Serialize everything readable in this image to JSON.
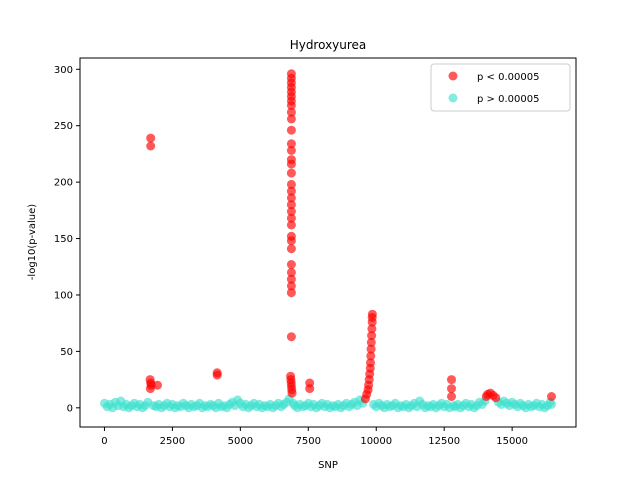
{
  "chart_data": {
    "type": "scatter",
    "title": "Hydroxyurea",
    "xlabel": "SNP",
    "ylabel": "-log10(p-value)",
    "xlim": [
      -900,
      17350
    ],
    "ylim": [
      -17,
      310
    ],
    "xticks": [
      0,
      2500,
      5000,
      7500,
      10000,
      12500,
      15000
    ],
    "yticks": [
      0,
      50,
      100,
      150,
      200,
      250,
      300
    ],
    "xtick_labels": [
      "0",
      "2500",
      "5000",
      "7500",
      "10000",
      "12500",
      "15000"
    ],
    "ytick_labels": [
      "0",
      "50",
      "100",
      "150",
      "200",
      "250",
      "300"
    ],
    "legend_position": "top-right",
    "series": [
      {
        "name": "p < 0.00005",
        "color": "#ff0000",
        "points": [
          [
            1700,
            239
          ],
          [
            1700,
            232
          ],
          [
            1680,
            25
          ],
          [
            1700,
            22
          ],
          [
            1720,
            20
          ],
          [
            1690,
            17
          ],
          [
            1950,
            20
          ],
          [
            4150,
            31
          ],
          [
            4150,
            29
          ],
          [
            7550,
            22
          ],
          [
            7550,
            17
          ],
          [
            6880,
            296
          ],
          [
            6880,
            292
          ],
          [
            6880,
            288
          ],
          [
            6880,
            284
          ],
          [
            6880,
            280
          ],
          [
            6880,
            276
          ],
          [
            6880,
            272
          ],
          [
            6880,
            268
          ],
          [
            6880,
            262
          ],
          [
            6880,
            256
          ],
          [
            6880,
            246
          ],
          [
            6880,
            234
          ],
          [
            6880,
            228
          ],
          [
            6880,
            220
          ],
          [
            6880,
            216
          ],
          [
            6880,
            208
          ],
          [
            6880,
            198
          ],
          [
            6880,
            192
          ],
          [
            6880,
            186
          ],
          [
            6880,
            180
          ],
          [
            6880,
            174
          ],
          [
            6880,
            168
          ],
          [
            6880,
            162
          ],
          [
            6880,
            152
          ],
          [
            6880,
            148
          ],
          [
            6880,
            141
          ],
          [
            6880,
            127
          ],
          [
            6880,
            120
          ],
          [
            6880,
            114
          ],
          [
            6880,
            108
          ],
          [
            6880,
            102
          ],
          [
            6880,
            63
          ],
          [
            6850,
            28
          ],
          [
            6860,
            25
          ],
          [
            6870,
            22
          ],
          [
            6880,
            19
          ],
          [
            6890,
            16
          ],
          [
            6900,
            13
          ],
          [
            9600,
            8
          ],
          [
            9650,
            12
          ],
          [
            9700,
            16
          ],
          [
            9720,
            20
          ],
          [
            9740,
            25
          ],
          [
            9760,
            30
          ],
          [
            9780,
            35
          ],
          [
            9790,
            40
          ],
          [
            9800,
            46
          ],
          [
            9810,
            52
          ],
          [
            9820,
            58
          ],
          [
            9830,
            64
          ],
          [
            9840,
            70
          ],
          [
            9850,
            76
          ],
          [
            9850,
            80
          ],
          [
            9860,
            83
          ],
          [
            12770,
            25
          ],
          [
            12770,
            17
          ],
          [
            12770,
            10
          ],
          [
            14050,
            10
          ],
          [
            14100,
            12
          ],
          [
            14200,
            13
          ],
          [
            14300,
            11
          ],
          [
            14400,
            9
          ],
          [
            16450,
            10
          ]
        ]
      },
      {
        "name": "p > 0.00005",
        "color": "#40e0d0",
        "points": [
          [
            0,
            4
          ],
          [
            100,
            1
          ],
          [
            200,
            3
          ],
          [
            300,
            0
          ],
          [
            400,
            5
          ],
          [
            500,
            2
          ],
          [
            600,
            6
          ],
          [
            700,
            1
          ],
          [
            800,
            3
          ],
          [
            900,
            0
          ],
          [
            1000,
            2
          ],
          [
            1100,
            4
          ],
          [
            1200,
            1
          ],
          [
            1300,
            3
          ],
          [
            1400,
            0
          ],
          [
            1500,
            2
          ],
          [
            1600,
            5
          ],
          [
            1800,
            2
          ],
          [
            1900,
            1
          ],
          [
            2000,
            3
          ],
          [
            2100,
            0
          ],
          [
            2200,
            2
          ],
          [
            2300,
            4
          ],
          [
            2400,
            1
          ],
          [
            2500,
            3
          ],
          [
            2600,
            0
          ],
          [
            2700,
            2
          ],
          [
            2800,
            1
          ],
          [
            2900,
            4
          ],
          [
            3000,
            2
          ],
          [
            3100,
            0
          ],
          [
            3200,
            3
          ],
          [
            3300,
            1
          ],
          [
            3400,
            2
          ],
          [
            3500,
            4
          ],
          [
            3600,
            0
          ],
          [
            3700,
            2
          ],
          [
            3800,
            1
          ],
          [
            3900,
            3
          ],
          [
            4000,
            2
          ],
          [
            4100,
            0
          ],
          [
            4200,
            4
          ],
          [
            4300,
            1
          ],
          [
            4400,
            2
          ],
          [
            4500,
            0
          ],
          [
            4600,
            3
          ],
          [
            4700,
            5
          ],
          [
            4800,
            2
          ],
          [
            4900,
            7
          ],
          [
            5000,
            4
          ],
          [
            5100,
            1
          ],
          [
            5200,
            3
          ],
          [
            5300,
            0
          ],
          [
            5400,
            2
          ],
          [
            5500,
            4
          ],
          [
            5600,
            1
          ],
          [
            5700,
            3
          ],
          [
            5800,
            0
          ],
          [
            5900,
            2
          ],
          [
            6000,
            1
          ],
          [
            6100,
            3
          ],
          [
            6200,
            0
          ],
          [
            6300,
            2
          ],
          [
            6400,
            4
          ],
          [
            6500,
            1
          ],
          [
            6600,
            3
          ],
          [
            6700,
            5
          ],
          [
            6800,
            8
          ],
          [
            6950,
            4
          ],
          [
            7000,
            2
          ],
          [
            7100,
            0
          ],
          [
            7200,
            3
          ],
          [
            7300,
            1
          ],
          [
            7400,
            2
          ],
          [
            7500,
            4
          ],
          [
            7600,
            1
          ],
          [
            7700,
            3
          ],
          [
            7800,
            0
          ],
          [
            7900,
            2
          ],
          [
            8000,
            4
          ],
          [
            8100,
            1
          ],
          [
            8200,
            3
          ],
          [
            8300,
            0
          ],
          [
            8400,
            2
          ],
          [
            8500,
            1
          ],
          [
            8600,
            3
          ],
          [
            8700,
            0
          ],
          [
            8800,
            2
          ],
          [
            8900,
            4
          ],
          [
            9000,
            1
          ],
          [
            9100,
            3
          ],
          [
            9200,
            5
          ],
          [
            9300,
            2
          ],
          [
            9400,
            7
          ],
          [
            9500,
            4
          ],
          [
            9900,
            3
          ],
          [
            10000,
            1
          ],
          [
            10100,
            4
          ],
          [
            10200,
            2
          ],
          [
            10300,
            0
          ],
          [
            10400,
            3
          ],
          [
            10500,
            1
          ],
          [
            10600,
            2
          ],
          [
            10700,
            4
          ],
          [
            10800,
            0
          ],
          [
            10900,
            2
          ],
          [
            11000,
            1
          ],
          [
            11100,
            3
          ],
          [
            11200,
            0
          ],
          [
            11300,
            2
          ],
          [
            11400,
            4
          ],
          [
            11500,
            1
          ],
          [
            11600,
            6
          ],
          [
            11700,
            3
          ],
          [
            11800,
            0
          ],
          [
            11900,
            2
          ],
          [
            12000,
            1
          ],
          [
            12100,
            3
          ],
          [
            12200,
            0
          ],
          [
            12300,
            2
          ],
          [
            12400,
            4
          ],
          [
            12500,
            1
          ],
          [
            12600,
            3
          ],
          [
            12700,
            0
          ],
          [
            12850,
            2
          ],
          [
            12900,
            1
          ],
          [
            13000,
            3
          ],
          [
            13100,
            0
          ],
          [
            13200,
            2
          ],
          [
            13300,
            4
          ],
          [
            13400,
            1
          ],
          [
            13500,
            3
          ],
          [
            13600,
            0
          ],
          [
            13700,
            2
          ],
          [
            13800,
            5
          ],
          [
            13900,
            3
          ],
          [
            14000,
            6
          ],
          [
            14500,
            5
          ],
          [
            14600,
            3
          ],
          [
            14700,
            6
          ],
          [
            14800,
            4
          ],
          [
            14900,
            2
          ],
          [
            15000,
            5
          ],
          [
            15100,
            3
          ],
          [
            15200,
            1
          ],
          [
            15300,
            4
          ],
          [
            15400,
            2
          ],
          [
            15500,
            0
          ],
          [
            15600,
            3
          ],
          [
            15700,
            1
          ],
          [
            15800,
            2
          ],
          [
            15900,
            4
          ],
          [
            16000,
            1
          ],
          [
            16100,
            3
          ],
          [
            16200,
            0
          ],
          [
            16300,
            2
          ],
          [
            16400,
            5
          ],
          [
            16450,
            3
          ]
        ]
      }
    ]
  }
}
